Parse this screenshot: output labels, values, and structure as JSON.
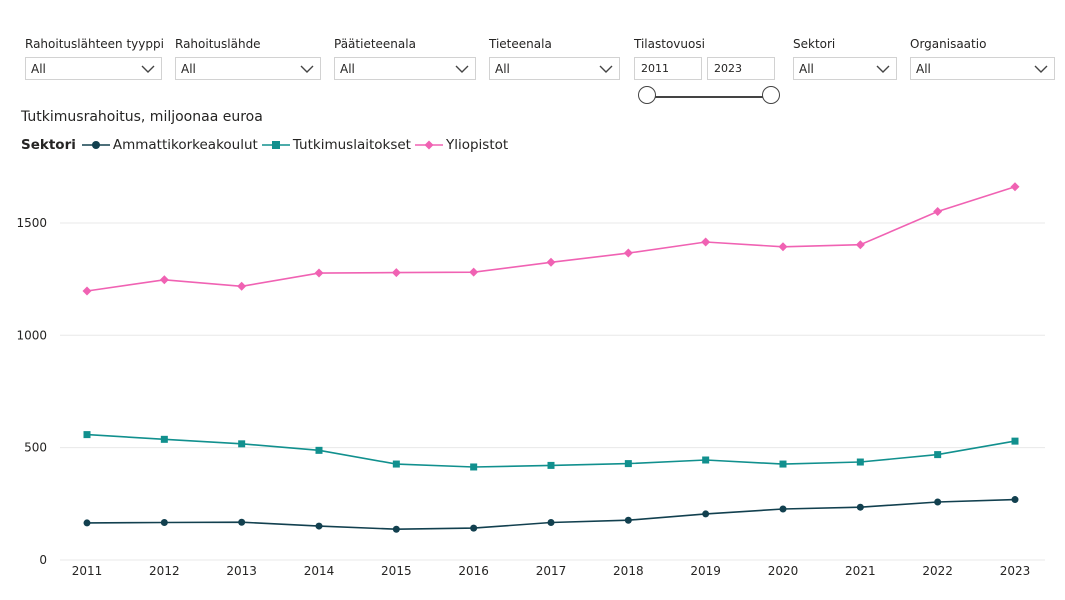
{
  "filters": {
    "rahoituslahteen_tyyppi": {
      "label": "Rahoituslähteen tyyppi",
      "value": "All"
    },
    "rahoituslahde": {
      "label": "Rahoituslähde",
      "value": "All"
    },
    "paatieteenala": {
      "label": "Päätieteenala",
      "value": "All"
    },
    "tieteenala": {
      "label": "Tieteenala",
      "value": "All"
    },
    "tilastovuosi": {
      "label": "Tilastovuosi",
      "from": "2011",
      "to": "2023"
    },
    "sektori": {
      "label": "Sektori",
      "value": "All"
    },
    "organisaatio": {
      "label": "Organisaatio",
      "value": "All"
    }
  },
  "chart_data": {
    "type": "line",
    "title": "Tutkimusrahoitus, miljoonaa euroa",
    "legend_title": "Sektori",
    "legend_position": "top-left",
    "x": [
      "2011",
      "2012",
      "2013",
      "2014",
      "2015",
      "2016",
      "2017",
      "2018",
      "2019",
      "2020",
      "2021",
      "2022",
      "2023"
    ],
    "ylim": [
      0,
      1700
    ],
    "yticks": [
      0,
      500,
      1000,
      1500
    ],
    "grid": true,
    "series": [
      {
        "name": "Ammattikorkeakoulut",
        "color": "#12404f",
        "marker": "circle",
        "values": [
          165,
          167,
          168,
          151,
          137,
          142,
          167,
          177,
          205,
          227,
          235,
          258,
          269
        ]
      },
      {
        "name": "Tutkimuslaitokset",
        "color": "#11908e",
        "marker": "square",
        "values": [
          558,
          537,
          517,
          488,
          427,
          414,
          421,
          429,
          445,
          427,
          436,
          469,
          529
        ]
      },
      {
        "name": "Yliopistot",
        "color": "#f062b3",
        "marker": "diamond",
        "values": [
          1197,
          1247,
          1218,
          1277,
          1279,
          1281,
          1325,
          1366,
          1415,
          1394,
          1403,
          1551,
          1661
        ]
      }
    ]
  }
}
